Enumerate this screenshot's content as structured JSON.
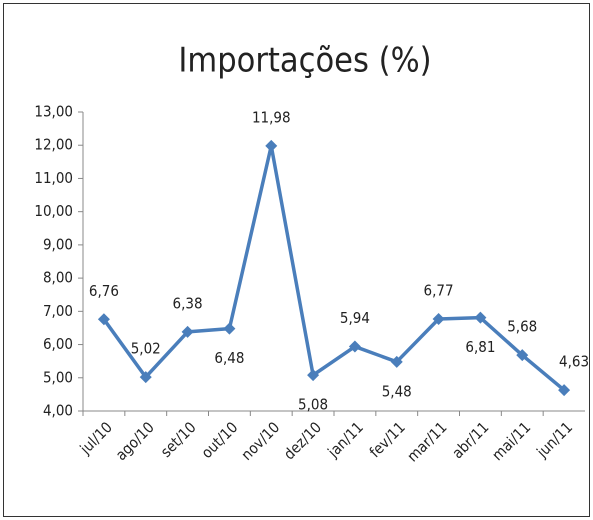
{
  "chart_data": {
    "type": "line",
    "title": "Importações (%)",
    "categories": [
      "jul/10",
      "ago/10",
      "set/10",
      "out/10",
      "nov/10",
      "dez/10",
      "jan/11",
      "fev/11",
      "mar/11",
      "abr/11",
      "mai/11",
      "jun/11"
    ],
    "series": [
      {
        "name": "Importações",
        "color": "#4a7ebb",
        "values": [
          6.76,
          5.02,
          6.38,
          6.48,
          11.98,
          5.08,
          5.94,
          5.48,
          6.77,
          6.81,
          5.68,
          4.63
        ],
        "value_labels": [
          "6,76",
          "5,02",
          "6,38",
          "6,48",
          "11,98",
          "5,08",
          "5,94",
          "5,48",
          "6,77",
          "6,81",
          "5,68",
          "4,63"
        ]
      }
    ],
    "ylim": [
      4,
      13
    ],
    "yticks": [
      {
        "value": 4,
        "label": "4,00"
      },
      {
        "value": 5,
        "label": "5,00"
      },
      {
        "value": 6,
        "label": "6,00"
      },
      {
        "value": 7,
        "label": "7,00"
      },
      {
        "value": 8,
        "label": "8,00"
      },
      {
        "value": 9,
        "label": "9,00"
      },
      {
        "value": 10,
        "label": "10,00"
      },
      {
        "value": 11,
        "label": "11,00"
      },
      {
        "value": 12,
        "label": "12,00"
      },
      {
        "value": 13,
        "label": "13,00"
      }
    ]
  }
}
